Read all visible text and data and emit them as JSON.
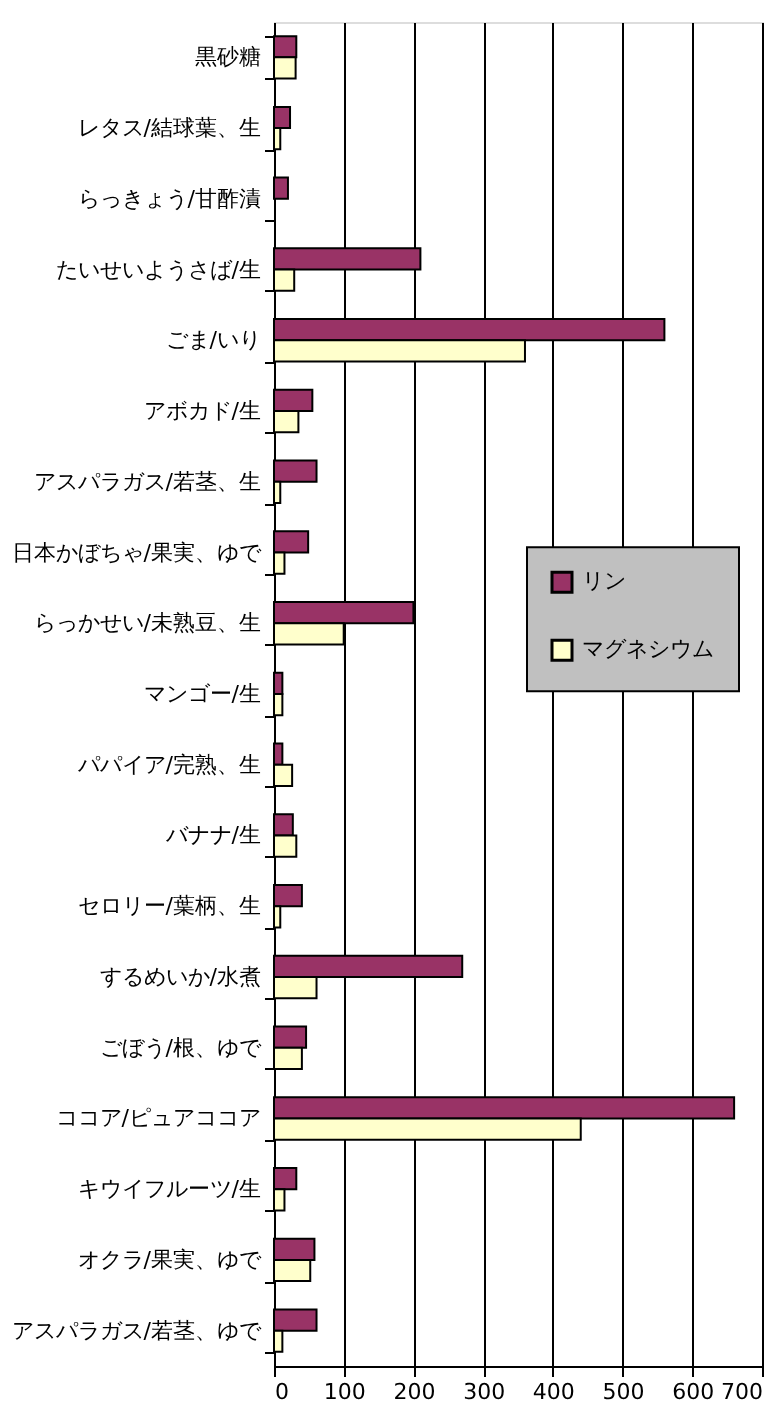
{
  "chart_data": {
    "type": "bar",
    "orientation": "horizontal",
    "categories": [
      "黒砂糖",
      "レタス/結球葉、生",
      "らっきょう/甘酢漬",
      "たいせいようさば/生",
      "ごま/いり",
      "アボカド/生",
      "アスパラガス/若茎、生",
      "日本かぼちゃ/果実、ゆで",
      "らっかせい/未熟豆、生",
      "マンゴー/生",
      "パパイア/完熟、生",
      "バナナ/生",
      "セロリー/葉柄、生",
      "するめいか/水煮",
      "ごぼう/根、ゆで",
      "ココア/ピュアココア",
      "キウイフルーツ/生",
      "オクラ/果実、ゆで",
      "アスパラガス/若茎、ゆで"
    ],
    "series": [
      {
        "name": "リン",
        "color": "#993366",
        "values": [
          32,
          23,
          20,
          210,
          560,
          55,
          61,
          49,
          200,
          12,
          12,
          27,
          40,
          270,
          46,
          660,
          32,
          58,
          61
        ]
      },
      {
        "name": "マグネシウム",
        "color": "#ffffcc",
        "values": [
          31,
          9,
          null,
          29,
          360,
          35,
          9,
          15,
          100,
          12,
          26,
          32,
          9,
          61,
          40,
          440,
          15,
          52,
          12
        ]
      }
    ],
    "xlim": [
      0,
      700
    ],
    "xticks": [
      0,
      100,
      200,
      300,
      400,
      500,
      600,
      700
    ],
    "grid": "x",
    "legend": "right"
  }
}
